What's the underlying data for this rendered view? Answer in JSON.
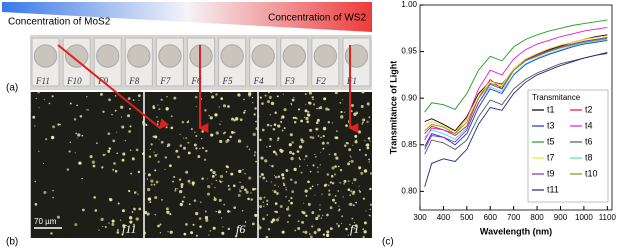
{
  "figure": {
    "panel_a": "(a)",
    "panel_b": "(b)",
    "panel_c": "(c)",
    "gradient_left": "Concentration of MoS2",
    "gradient_right": "Concentration of WS2",
    "filters": [
      "F11",
      "F10",
      "F9",
      "F8",
      "F7",
      "F6",
      "F5",
      "F4",
      "F3",
      "F2",
      "F1"
    ],
    "micrographs": [
      "f11",
      "f6",
      "f1"
    ],
    "scale_bar": "70 µm"
  },
  "chart_data": {
    "type": "line",
    "x_label": "Wavelength (nm)",
    "y_label": "Transmitance of Light",
    "legend_title": "Transmitance",
    "x": [
      320,
      350,
      400,
      450,
      500,
      550,
      600,
      650,
      700,
      750,
      800,
      850,
      900,
      950,
      1000,
      1050,
      1100
    ],
    "xlim": [
      300,
      1120
    ],
    "xticks": [
      300,
      400,
      500,
      600,
      700,
      800,
      900,
      1000,
      1100
    ],
    "ylim": [
      0.78,
      1.0
    ],
    "yticks": [
      {
        "value": 0.8,
        "label": "0.80"
      },
      {
        "value": 0.85,
        "label": "0.85"
      },
      {
        "value": 0.9,
        "label": "0.90"
      },
      {
        "value": 0.95,
        "label": "0.95"
      },
      {
        "value": 1.0,
        "label": "1.00"
      }
    ],
    "grid": false,
    "series": [
      {
        "name": "t1",
        "color": "#000000",
        "values": [
          0.875,
          0.878,
          0.872,
          0.865,
          0.88,
          0.905,
          0.918,
          0.915,
          0.93,
          0.94,
          0.947,
          0.952,
          0.956,
          0.96,
          0.963,
          0.966,
          0.968
        ]
      },
      {
        "name": "t2",
        "color": "#e8141a",
        "values": [
          0.862,
          0.87,
          0.866,
          0.86,
          0.87,
          0.9,
          0.92,
          0.91,
          0.93,
          0.94,
          0.946,
          0.95,
          0.955,
          0.958,
          0.961,
          0.963,
          0.965
        ]
      },
      {
        "name": "t3",
        "color": "#2030e0",
        "values": [
          0.848,
          0.862,
          0.858,
          0.85,
          0.862,
          0.89,
          0.91,
          0.905,
          0.925,
          0.936,
          0.942,
          0.947,
          0.951,
          0.955,
          0.958,
          0.96,
          0.962
        ]
      },
      {
        "name": "t4",
        "color": "#e020d0",
        "values": [
          0.855,
          0.868,
          0.866,
          0.862,
          0.878,
          0.91,
          0.93,
          0.925,
          0.942,
          0.952,
          0.958,
          0.962,
          0.966,
          0.969,
          0.972,
          0.974,
          0.976
        ]
      },
      {
        "name": "t5",
        "color": "#20a020",
        "values": [
          0.885,
          0.895,
          0.893,
          0.888,
          0.905,
          0.93,
          0.945,
          0.94,
          0.955,
          0.963,
          0.968,
          0.972,
          0.975,
          0.978,
          0.98,
          0.982,
          0.984
        ]
      },
      {
        "name": "t6",
        "color": "#555555",
        "values": [
          0.84,
          0.855,
          0.852,
          0.845,
          0.855,
          0.88,
          0.898,
          0.893,
          0.91,
          0.92,
          0.927,
          0.932,
          0.937,
          0.94,
          0.943,
          0.946,
          0.948
        ]
      },
      {
        "name": "t7",
        "color": "#f0e040",
        "values": [
          0.87,
          0.875,
          0.87,
          0.864,
          0.877,
          0.903,
          0.918,
          0.914,
          0.932,
          0.942,
          0.948,
          0.953,
          0.957,
          0.96,
          0.963,
          0.965,
          0.967
        ]
      },
      {
        "name": "t8",
        "color": "#40e0e0",
        "values": [
          0.858,
          0.866,
          0.862,
          0.856,
          0.868,
          0.895,
          0.912,
          0.907,
          0.926,
          0.937,
          0.943,
          0.948,
          0.952,
          0.956,
          0.959,
          0.961,
          0.963
        ]
      },
      {
        "name": "t9",
        "color": "#8030c0",
        "values": [
          0.845,
          0.86,
          0.858,
          0.853,
          0.866,
          0.895,
          0.915,
          0.91,
          0.93,
          0.941,
          0.947,
          0.951,
          0.955,
          0.958,
          0.961,
          0.963,
          0.965
        ]
      },
      {
        "name": "t10",
        "color": "#8a9a20",
        "values": [
          0.865,
          0.872,
          0.869,
          0.862,
          0.874,
          0.9,
          0.916,
          0.912,
          0.93,
          0.94,
          0.945,
          0.95,
          0.954,
          0.957,
          0.96,
          0.962,
          0.964
        ]
      },
      {
        "name": "t11",
        "color": "#1a2a80",
        "values": [
          0.805,
          0.83,
          0.835,
          0.832,
          0.845,
          0.872,
          0.89,
          0.887,
          0.905,
          0.917,
          0.925,
          0.93,
          0.935,
          0.939,
          0.943,
          0.946,
          0.949
        ]
      }
    ]
  }
}
